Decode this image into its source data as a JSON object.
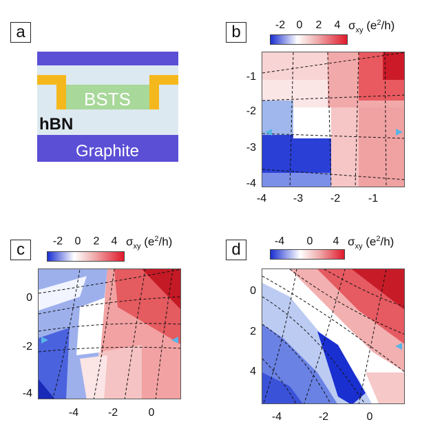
{
  "panels": {
    "a": {
      "label": "a",
      "layers": {
        "material": "BSTS",
        "dielectric": "hBN",
        "gate": "Graphite"
      },
      "colors": {
        "top_gate": "#5b4fd6",
        "contacts": "#f5b81c",
        "bsts": "#a8d89a",
        "hbn": "#dde9f0",
        "graphite": "#5b4fd6"
      }
    },
    "b": {
      "label": "b",
      "colorbar": {
        "ticks": [
          "-2",
          "0",
          "2",
          "4"
        ],
        "label_main": "σ",
        "label_sub": "xy",
        "label_unit_pre": "(e",
        "label_unit_sup": "2",
        "label_unit_post": "/h)"
      },
      "x_ticks": [
        "-4",
        "-3",
        "-2",
        "-1"
      ],
      "y_ticks": [
        "-1",
        "-2",
        "-3",
        "-4"
      ]
    },
    "c": {
      "label": "c",
      "colorbar": {
        "ticks": [
          "-2",
          "0",
          "2",
          "4"
        ],
        "label_main": "σ",
        "label_sub": "xy",
        "label_unit_pre": "(e",
        "label_unit_sup": "2",
        "label_unit_post": "/h)"
      },
      "x_ticks": [
        "-4",
        "-2",
        "0"
      ],
      "y_ticks": [
        "0",
        "-2",
        "-4"
      ]
    },
    "d": {
      "label": "d",
      "colorbar": {
        "ticks": [
          "-4",
          "0",
          "4"
        ],
        "label_main": "σ",
        "label_sub": "xy",
        "label_unit_pre": "(e",
        "label_unit_sup": "2",
        "label_unit_post": "/h)"
      },
      "x_ticks": [
        "-4",
        "-2",
        "0"
      ],
      "y_ticks": [
        "0",
        "2",
        "4"
      ]
    }
  },
  "colors": {
    "negative": "#1a2fd0",
    "zero": "#ffffff",
    "positive": "#e01a2c",
    "marker": "#5ab4e6",
    "dash": "#111111"
  }
}
